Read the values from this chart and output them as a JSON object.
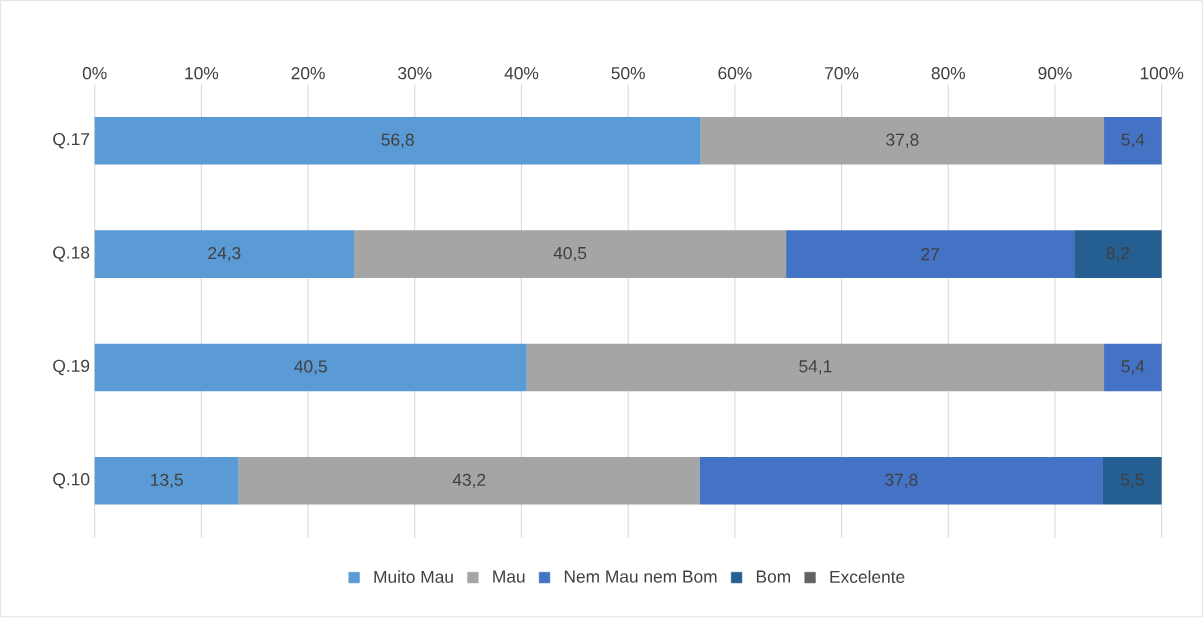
{
  "chart_data": {
    "type": "bar",
    "orientation": "horizontal",
    "stacked": true,
    "categories": [
      "Q.17",
      "Q.18",
      "Q.19",
      "Q.10"
    ],
    "series": [
      {
        "name": "Muito Mau",
        "color": "#5b9bd5",
        "values": [
          56.8,
          24.3,
          40.5,
          13.5
        ],
        "value_labels": [
          "56,8",
          "24,3",
          "40,5",
          "13,5"
        ]
      },
      {
        "name": "Mau",
        "color": "#a5a5a5",
        "values": [
          37.8,
          40.5,
          54.1,
          43.2
        ],
        "value_labels": [
          "37,8",
          "40,5",
          "54,1",
          "43,2"
        ]
      },
      {
        "name": "Nem Mau nem Bom",
        "color": "#4472c4",
        "values": [
          5.4,
          27,
          5.4,
          37.8
        ],
        "value_labels": [
          "5,4",
          "27",
          "5,4",
          "37,8"
        ]
      },
      {
        "name": "Bom",
        "color": "#255e91",
        "values": [
          null,
          8.2,
          null,
          5.5
        ],
        "value_labels": [
          null,
          "8,2",
          null,
          "5,5"
        ]
      },
      {
        "name": "Excelente",
        "color": "#636363",
        "values": [
          null,
          null,
          null,
          null
        ],
        "value_labels": [
          null,
          null,
          null,
          null
        ]
      }
    ],
    "xlim": [
      0,
      100
    ],
    "xticks": [
      {
        "value": 0,
        "label": "0%"
      },
      {
        "value": 10,
        "label": "10%"
      },
      {
        "value": 20,
        "label": "20%"
      },
      {
        "value": 30,
        "label": "30%"
      },
      {
        "value": 40,
        "label": "40%"
      },
      {
        "value": 50,
        "label": "50%"
      },
      {
        "value": 60,
        "label": "60%"
      },
      {
        "value": 70,
        "label": "70%"
      },
      {
        "value": 80,
        "label": "80%"
      },
      {
        "value": 90,
        "label": "90%"
      },
      {
        "value": 100,
        "label": "100%"
      }
    ],
    "grid": "x",
    "legend": "bottom"
  }
}
